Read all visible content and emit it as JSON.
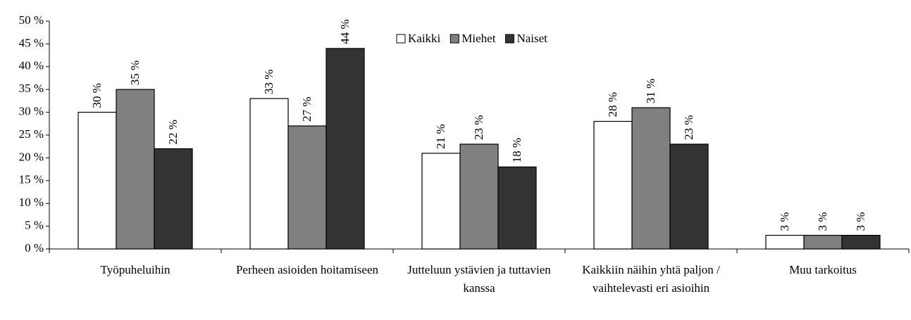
{
  "chart_data": {
    "type": "bar",
    "categories": [
      "Työpuheluihin",
      "Perheen asioiden hoitamiseen",
      "Jutteluun ystävien ja tuttavien kanssa",
      "Kaikkiin näihin yhtä paljon / vaihtelevasti eri asioihin",
      "Muu tarkoitus"
    ],
    "series": [
      {
        "name": "Kaikki",
        "color": "#ffffff",
        "values": [
          30,
          33,
          21,
          28,
          3
        ],
        "value_labels": [
          "30 %",
          "33 %",
          "21 %",
          "28 %",
          "3 %"
        ]
      },
      {
        "name": "Miehet",
        "color": "#808080",
        "values": [
          35,
          27,
          23,
          31,
          3
        ],
        "value_labels": [
          "35 %",
          "27 %",
          "23 %",
          "31 %",
          "3 %"
        ]
      },
      {
        "name": "Naiset",
        "color": "#333333",
        "values": [
          22,
          44,
          18,
          23,
          3
        ],
        "value_labels": [
          "22 %",
          "44 %",
          "18 %",
          "23 %",
          "3 %"
        ]
      }
    ],
    "ylim": [
      0,
      50
    ],
    "yticks": [
      {
        "value": 0,
        "label": "0 %"
      },
      {
        "value": 5,
        "label": "5 %"
      },
      {
        "value": 10,
        "label": "10 %"
      },
      {
        "value": 15,
        "label": "15 %"
      },
      {
        "value": 20,
        "label": "20 %"
      },
      {
        "value": 25,
        "label": "25 %"
      },
      {
        "value": 30,
        "label": "30 %"
      },
      {
        "value": 35,
        "label": "35 %"
      },
      {
        "value": 40,
        "label": "40 %"
      },
      {
        "value": 45,
        "label": "45 %"
      },
      {
        "value": 50,
        "label": "50 %"
      }
    ],
    "grid": false,
    "legend": "top"
  }
}
